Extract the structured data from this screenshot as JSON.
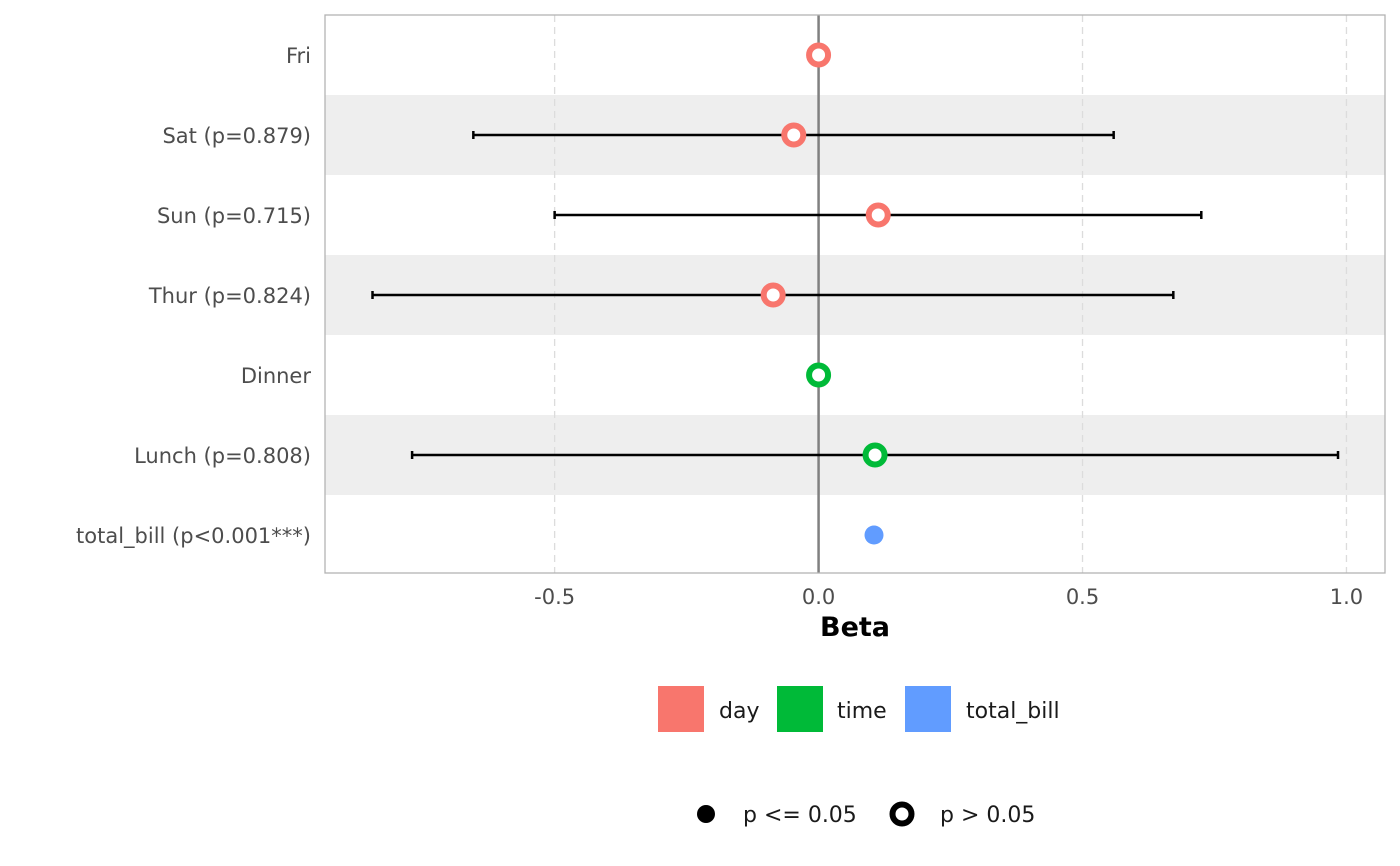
{
  "chart_data": {
    "type": "forest",
    "xlabel": "Beta",
    "xlim": [
      -0.935,
      1.073
    ],
    "x_ticks": [
      {
        "value": -0.5,
        "label": "-0.5"
      },
      {
        "value": 0.0,
        "label": "0.0"
      },
      {
        "value": 0.5,
        "label": "0.5"
      },
      {
        "value": 1.0,
        "label": "1.0"
      }
    ],
    "grid": "vertical dashed",
    "zero_line": 0,
    "colors": {
      "day": "#F8766D",
      "time": "#00BA38",
      "total_bill": "#619CFF"
    },
    "rows": [
      {
        "label": "Fri",
        "group": "day",
        "estimate": 0.0,
        "ci_low": null,
        "ci_high": null,
        "significant": false,
        "shaded": false
      },
      {
        "label": "Sat (p=0.879)",
        "group": "day",
        "estimate": -0.047,
        "ci_low": -0.654,
        "ci_high": 0.559,
        "significant": false,
        "shaded": true
      },
      {
        "label": "Sun (p=0.715)",
        "group": "day",
        "estimate": 0.113,
        "ci_low": -0.5,
        "ci_high": 0.725,
        "significant": false,
        "shaded": false
      },
      {
        "label": "Thur (p=0.824)",
        "group": "day",
        "estimate": -0.086,
        "ci_low": -0.845,
        "ci_high": 0.672,
        "significant": false,
        "shaded": true
      },
      {
        "label": "Dinner",
        "group": "time",
        "estimate": 0.0,
        "ci_low": null,
        "ci_high": null,
        "significant": false,
        "shaded": false
      },
      {
        "label": "Lunch (p=0.808)",
        "group": "time",
        "estimate": 0.107,
        "ci_low": -0.77,
        "ci_high": 0.984,
        "significant": false,
        "shaded": true
      },
      {
        "label": "total_bill (p<0.001***)",
        "group": "total_bill",
        "estimate": 0.105,
        "ci_low": 0.096,
        "ci_high": 0.114,
        "significant": true,
        "shaded": false
      }
    ],
    "legend": {
      "placement": "bottom",
      "groups": [
        {
          "key": "day",
          "label": "day"
        },
        {
          "key": "time",
          "label": "time"
        },
        {
          "key": "total_bill",
          "label": "total_bill"
        }
      ],
      "shapes": [
        {
          "key": "filled",
          "label": "p <= 0.05"
        },
        {
          "key": "open",
          "label": "p > 0.05"
        }
      ]
    }
  }
}
